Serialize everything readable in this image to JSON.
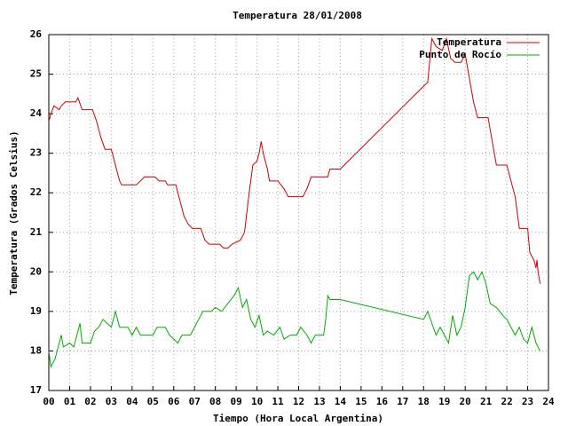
{
  "chart_data": {
    "type": "line",
    "title": "Temperatura 28/01/2008",
    "x_label": "Tiempo (Hora Local Argentina)",
    "y_label": "Temperatura (Grados Celsius)",
    "xlim": [
      0,
      24
    ],
    "ylim": [
      17,
      26
    ],
    "xticks": [
      {
        "value": 0,
        "label": "00"
      },
      {
        "value": 1,
        "label": "01"
      },
      {
        "value": 2,
        "label": "02"
      },
      {
        "value": 3,
        "label": "03"
      },
      {
        "value": 4,
        "label": "04"
      },
      {
        "value": 5,
        "label": "05"
      },
      {
        "value": 6,
        "label": "06"
      },
      {
        "value": 7,
        "label": "07"
      },
      {
        "value": 8,
        "label": "08"
      },
      {
        "value": 9,
        "label": "09"
      },
      10,
      11,
      12,
      13,
      14,
      15,
      16,
      17,
      18,
      19,
      20,
      21,
      22,
      23,
      24
    ],
    "yticks": [
      17,
      18,
      19,
      20,
      21,
      22,
      23,
      24,
      25,
      26
    ],
    "grid": true,
    "legend": "top-right",
    "series": [
      {
        "name": "Temperatura",
        "color": "#cc0000",
        "x": [
          0,
          0.1,
          0.25,
          0.5,
          0.6,
          0.8,
          1.3,
          1.4,
          1.6,
          2.1,
          2.3,
          2.5,
          2.7,
          3.0,
          3.2,
          3.4,
          3.5,
          4.2,
          4.4,
          4.6,
          5.1,
          5.3,
          5.6,
          5.7,
          6.1,
          6.3,
          6.5,
          6.7,
          6.9,
          7.3,
          7.5,
          7.7,
          8.2,
          8.4,
          8.6,
          8.8,
          9.2,
          9.4,
          9.6,
          9.8,
          10.0,
          10.1,
          10.2,
          10.3,
          10.5,
          10.6,
          11.0,
          11.3,
          11.5,
          12.2,
          12.4,
          12.6,
          13.4,
          13.5,
          14.0,
          18.2,
          18.4,
          18.6,
          18.9,
          19.1,
          19.3,
          19.5,
          19.8,
          20.0,
          20.2,
          20.4,
          20.6,
          21.1,
          21.3,
          21.5,
          22.0,
          22.2,
          22.4,
          22.6,
          23.0,
          23.1,
          23.3,
          23.4,
          23.45,
          23.5,
          23.6
        ],
        "values": [
          23.8,
          24.0,
          24.2,
          24.1,
          24.2,
          24.3,
          24.3,
          24.4,
          24.1,
          24.1,
          23.8,
          23.4,
          23.1,
          23.1,
          22.7,
          22.3,
          22.2,
          22.2,
          22.3,
          22.4,
          22.4,
          22.3,
          22.3,
          22.2,
          22.2,
          21.8,
          21.4,
          21.2,
          21.1,
          21.1,
          20.8,
          20.7,
          20.7,
          20.6,
          20.6,
          20.7,
          20.8,
          21.0,
          21.9,
          22.7,
          22.8,
          23.0,
          23.3,
          23.0,
          22.6,
          22.3,
          22.3,
          22.1,
          21.9,
          21.9,
          22.1,
          22.4,
          22.4,
          22.6,
          22.6,
          24.8,
          25.9,
          25.7,
          25.6,
          25.9,
          25.4,
          25.3,
          25.3,
          25.5,
          24.9,
          24.3,
          23.9,
          23.9,
          23.3,
          22.7,
          22.7,
          22.3,
          21.9,
          21.1,
          21.1,
          20.5,
          20.3,
          20.1,
          20.3,
          20.0,
          19.7
        ]
      },
      {
        "name": "Punto de Rocío",
        "color": "#00aa00",
        "x": [
          0,
          0.1,
          0.3,
          0.5,
          0.6,
          0.7,
          1.0,
          1.2,
          1.5,
          1.6,
          2.0,
          2.2,
          2.4,
          2.6,
          3.0,
          3.2,
          3.4,
          3.8,
          4.0,
          4.2,
          4.4,
          4.6,
          5.0,
          5.2,
          5.6,
          5.8,
          6.0,
          6.2,
          6.4,
          6.8,
          7.0,
          7.2,
          7.4,
          7.8,
          8.0,
          8.3,
          8.6,
          8.9,
          9.1,
          9.3,
          9.5,
          9.7,
          9.9,
          10.1,
          10.3,
          10.5,
          10.8,
          11.1,
          11.3,
          11.6,
          11.9,
          12.1,
          12.4,
          12.6,
          12.8,
          13.2,
          13.3,
          13.4,
          13.5,
          14.0,
          18.0,
          18.2,
          18.4,
          18.6,
          18.8,
          19.0,
          19.2,
          19.4,
          19.6,
          19.8,
          20.0,
          20.2,
          20.4,
          20.6,
          20.8,
          21.0,
          21.2,
          21.5,
          21.8,
          22.0,
          22.2,
          22.4,
          22.6,
          22.8,
          23.0,
          23.2,
          23.4,
          23.6
        ],
        "values": [
          18.0,
          17.6,
          17.8,
          18.2,
          18.4,
          18.1,
          18.2,
          18.1,
          18.7,
          18.2,
          18.2,
          18.5,
          18.6,
          18.8,
          18.6,
          19.0,
          18.6,
          18.6,
          18.4,
          18.6,
          18.4,
          18.4,
          18.4,
          18.6,
          18.6,
          18.4,
          18.3,
          18.2,
          18.4,
          18.4,
          18.6,
          18.8,
          19.0,
          19.0,
          19.1,
          19.0,
          19.2,
          19.4,
          19.6,
          19.1,
          19.3,
          18.8,
          18.6,
          18.9,
          18.4,
          18.5,
          18.4,
          18.6,
          18.3,
          18.4,
          18.4,
          18.6,
          18.4,
          18.2,
          18.4,
          18.4,
          18.8,
          19.4,
          19.3,
          19.3,
          18.8,
          19.0,
          18.7,
          18.4,
          18.6,
          18.4,
          18.2,
          18.9,
          18.4,
          18.6,
          19.1,
          19.9,
          20.0,
          19.8,
          20.0,
          19.7,
          19.2,
          19.1,
          18.9,
          18.8,
          18.6,
          18.4,
          18.6,
          18.3,
          18.2,
          18.6,
          18.2,
          18.0
        ]
      }
    ]
  }
}
